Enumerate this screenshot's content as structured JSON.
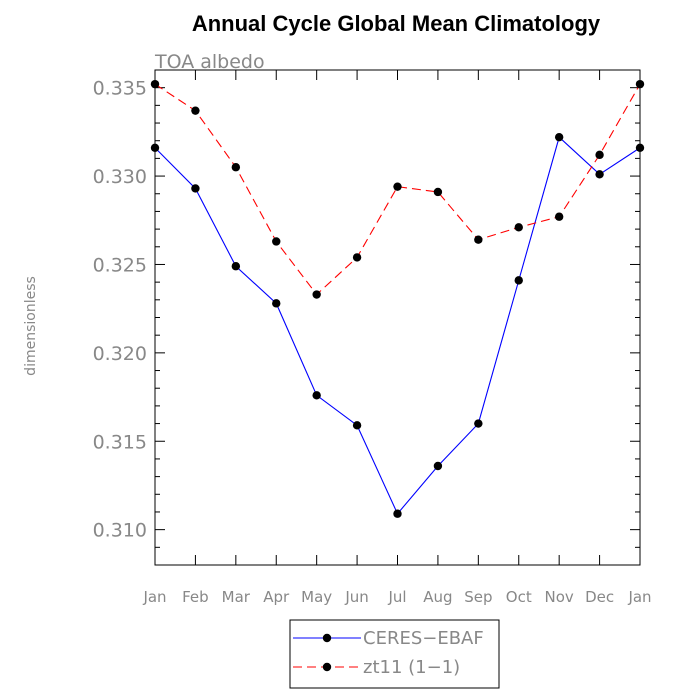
{
  "chart_data": {
    "type": "line",
    "title": "Annual Cycle Global Mean Climatology",
    "subtitle": "TOA albedo",
    "xlabel": "",
    "ylabel": "dimensionless",
    "categories": [
      "Jan",
      "Feb",
      "Mar",
      "Apr",
      "May",
      "Jun",
      "Jul",
      "Aug",
      "Sep",
      "Oct",
      "Nov",
      "Dec",
      "Jan"
    ],
    "ylim": [
      0.308,
      0.336
    ],
    "yticks": [
      0.31,
      0.315,
      0.32,
      0.325,
      0.33,
      0.335
    ],
    "ytick_labels": [
      "0.310",
      "0.315",
      "0.320",
      "0.325",
      "0.330",
      "0.335"
    ],
    "grid": false,
    "legend_position": "bottom-center",
    "series": [
      {
        "name": "CERES−EBAF",
        "color": "#0000ff",
        "line_style": "solid",
        "marker": "circle",
        "values": [
          0.3316,
          0.3293,
          0.3249,
          0.3228,
          0.3176,
          0.3159,
          0.3109,
          0.3136,
          0.316,
          0.3241,
          0.3322,
          0.3301,
          0.3316
        ]
      },
      {
        "name": "zt11 (1−1)",
        "color": "#ff0000",
        "line_style": "dashed",
        "marker": "circle",
        "values": [
          0.3352,
          0.3337,
          0.3305,
          0.3263,
          0.3233,
          0.3254,
          0.3294,
          0.3291,
          0.3264,
          0.3271,
          0.3277,
          0.3312,
          0.3352
        ]
      }
    ]
  }
}
